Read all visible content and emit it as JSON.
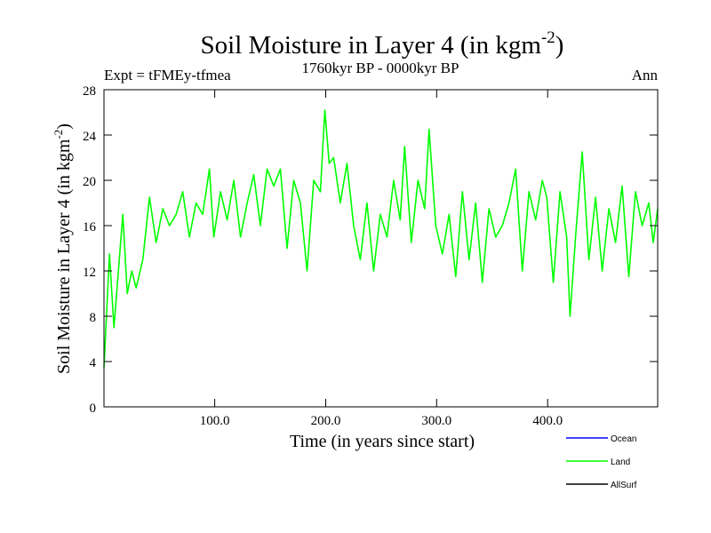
{
  "chart_data": {
    "type": "line",
    "title": "Soil Moisture in Layer 4 (in kgm",
    "title_sup": "-2",
    "title_close": ")",
    "subtitle_left": "Expt = tFMEy-tfmea",
    "subtitle_center": "1760kyr BP - 0000kyr BP",
    "subtitle_right": "Ann",
    "xlabel": "Time (in years since start)",
    "ylabel": "Soil Moisture in Layer 4 (in kgm",
    "ylabel_sup": "-2",
    "ylabel_close": ")",
    "xlim": [
      1,
      500
    ],
    "ylim": [
      0,
      28
    ],
    "xticks": [
      100,
      200,
      300,
      400
    ],
    "xtick_labels": [
      "100.0",
      "200.0",
      "300.0",
      "400.0"
    ],
    "yticks": [
      0,
      4,
      8,
      12,
      16,
      20,
      24,
      28
    ],
    "ytick_labels": [
      "0",
      "4",
      "8",
      "12",
      "16",
      "20",
      "24",
      "28"
    ],
    "legend": [
      {
        "name": "Ocean",
        "color": "#0000ff"
      },
      {
        "name": "Land",
        "color": "#00ff00"
      },
      {
        "name": "AllSurf",
        "color": "#000000"
      }
    ],
    "legend_position": "bottom-right",
    "series": [
      {
        "name": "Land",
        "color": "#00ff00",
        "x": [
          1,
          6,
          10,
          14,
          18,
          22,
          26,
          30,
          36,
          42,
          48,
          54,
          60,
          66,
          72,
          78,
          84,
          90,
          96,
          100,
          106,
          112,
          118,
          124,
          130,
          136,
          142,
          148,
          154,
          160,
          166,
          172,
          178,
          184,
          190,
          196,
          200,
          204,
          208,
          214,
          220,
          226,
          232,
          238,
          244,
          250,
          256,
          262,
          268,
          272,
          278,
          284,
          290,
          294,
          300,
          306,
          312,
          318,
          324,
          330,
          336,
          342,
          348,
          354,
          360,
          366,
          372,
          378,
          384,
          390,
          396,
          400,
          406,
          412,
          418,
          421,
          426,
          432,
          438,
          444,
          450,
          456,
          462,
          468,
          474,
          480,
          486,
          492,
          496,
          500
        ],
        "values": [
          3.5,
          13.5,
          7,
          12,
          17,
          10,
          12,
          10.5,
          13,
          18.5,
          14.5,
          17.5,
          16,
          17,
          19,
          15,
          18,
          17,
          21,
          15,
          19,
          16.5,
          20,
          15,
          18,
          20.5,
          16,
          21,
          19.5,
          21,
          14,
          20,
          18,
          12,
          20,
          19,
          26.2,
          21.5,
          22,
          18,
          21.5,
          16,
          13,
          18,
          12,
          17,
          15,
          20,
          16.5,
          23,
          14.5,
          20,
          17.5,
          24.5,
          16,
          13.5,
          17,
          11.5,
          19,
          13,
          18,
          11,
          17.5,
          15,
          16,
          18,
          21,
          12,
          19,
          16.5,
          20,
          18.5,
          11,
          19,
          15,
          8,
          15,
          22.5,
          13,
          18.5,
          12,
          17.5,
          14.5,
          19.5,
          11.5,
          19,
          16,
          18,
          14.5,
          17.5
        ]
      }
    ]
  }
}
